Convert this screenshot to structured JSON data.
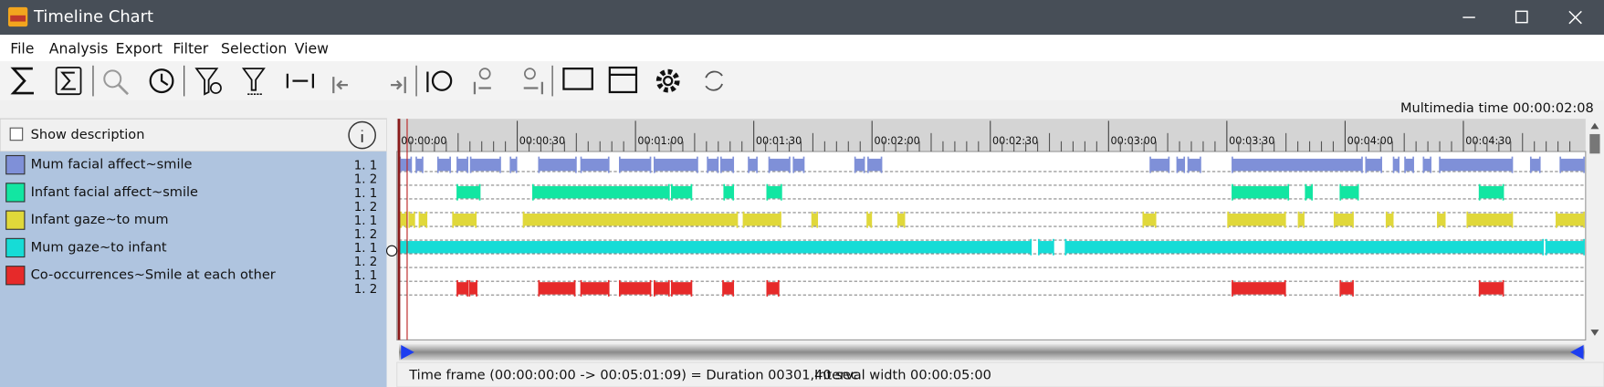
{
  "window": {
    "title": "Timeline Chart"
  },
  "menu": [
    "File",
    "Analysis",
    "Export",
    "Filter",
    "Selection",
    "View"
  ],
  "multimedia_time": "Multimedia time 00:00:02:08",
  "show_description": "Show description",
  "status": {
    "time_frame": "Time frame  (00:00:00:00 -> 00:05:01:09) = Duration 00301,40 sec",
    "interval_width": "Interval width 00:00:05:00"
  },
  "chart_data": {
    "type": "timeline",
    "xlim": [
      0,
      301
    ],
    "xticks": [
      {
        "value": 0,
        "label": "00:00:00"
      },
      {
        "value": 30,
        "label": "00:00:30"
      },
      {
        "value": 60,
        "label": "00:01:00"
      },
      {
        "value": 90,
        "label": "00:01:30"
      },
      {
        "value": 120,
        "label": "00:02:00"
      },
      {
        "value": 150,
        "label": "00:02:30"
      },
      {
        "value": 180,
        "label": "00:03:00"
      },
      {
        "value": 210,
        "label": "00:03:30"
      },
      {
        "value": 240,
        "label": "00:04:00"
      },
      {
        "value": 270,
        "label": "00:04:30"
      }
    ],
    "row_labels": [
      "1. 1",
      "1. 2"
    ],
    "series": [
      {
        "name": "Mum facial affect~smile",
        "color": "#7f90d8",
        "row": 0,
        "segments": [
          [
            0.3,
            3.1
          ],
          [
            4.4,
            6.0
          ],
          [
            9.9,
            13.0
          ],
          [
            14.8,
            17.4
          ],
          [
            18.2,
            25.7
          ],
          [
            28.3,
            29.8
          ],
          [
            35.5,
            44.9
          ],
          [
            46.2,
            53.2
          ],
          [
            56.0,
            63.8
          ],
          [
            64.8,
            75.7
          ],
          [
            78.3,
            80.9
          ],
          [
            81.7,
            84.8
          ],
          [
            88.7,
            90.8
          ],
          [
            93.9,
            99.1
          ],
          [
            100.1,
            102.7
          ],
          [
            115.7,
            118.0
          ],
          [
            119.0,
            122.4
          ],
          [
            190.6,
            195.3
          ],
          [
            197.4,
            199.2
          ],
          [
            200.2,
            203.3
          ],
          [
            211.4,
            244.3
          ],
          [
            245.3,
            249.2
          ],
          [
            252.3,
            253.6
          ],
          [
            255.2,
            257.3
          ],
          [
            259.9,
            261.7
          ],
          [
            264.0,
            282.4
          ],
          [
            287.1,
            289.4
          ],
          [
            294.6,
            300.6
          ]
        ]
      },
      {
        "name": "Infant facial affect~smile",
        "color": "#12e6a2",
        "row": 0,
        "segments": [
          [
            14.8,
            20.5
          ],
          [
            34.0,
            68.5
          ],
          [
            69.2,
            74.2
          ],
          [
            82.5,
            84.8
          ],
          [
            93.4,
            97.0
          ],
          [
            211.4,
            225.6
          ],
          [
            230.0,
            231.6
          ],
          [
            238.8,
            243.3
          ],
          [
            274.1,
            280.1
          ]
        ]
      },
      {
        "name": "Infant gaze~to mum",
        "color": "#e0d83a",
        "row": 0,
        "segments": [
          [
            0.5,
            1.8
          ],
          [
            2.6,
            3.9
          ],
          [
            5.2,
            7.0
          ],
          [
            13.7,
            19.5
          ],
          [
            31.6,
            85.8
          ],
          [
            87.4,
            96.8
          ],
          [
            104.8,
            106.1
          ],
          [
            118.8,
            119.8
          ],
          [
            126.6,
            128.2
          ],
          [
            188.8,
            191.9
          ],
          [
            210.3,
            224.8
          ],
          [
            228.2,
            229.5
          ],
          [
            237.3,
            242.0
          ],
          [
            250.5,
            252.1
          ],
          [
            263.5,
            265.3
          ],
          [
            271.0,
            282.4
          ],
          [
            293.6,
            300.6
          ]
        ]
      },
      {
        "name": "Mum gaze~to infant",
        "color": "#16dcd6",
        "row": 0,
        "segments": [
          [
            0,
            160.3
          ],
          [
            162.3,
            166.0
          ],
          [
            169.1,
            290.2
          ],
          [
            291.0,
            300.6
          ]
        ]
      },
      {
        "name": "Co-occurrences~Smile at each other",
        "color": "#e62a2a",
        "row": 1,
        "segments": [
          [
            14.8,
            17.4
          ],
          [
            17.9,
            19.7
          ],
          [
            35.5,
            44.6
          ],
          [
            46.2,
            53.2
          ],
          [
            56.0,
            63.8
          ],
          [
            64.8,
            68.5
          ],
          [
            69.2,
            74.2
          ],
          [
            82.2,
            84.8
          ],
          [
            93.4,
            96.3
          ],
          [
            211.4,
            224.8
          ],
          [
            238.8,
            242.0
          ],
          [
            274.1,
            280.1
          ]
        ]
      }
    ]
  }
}
